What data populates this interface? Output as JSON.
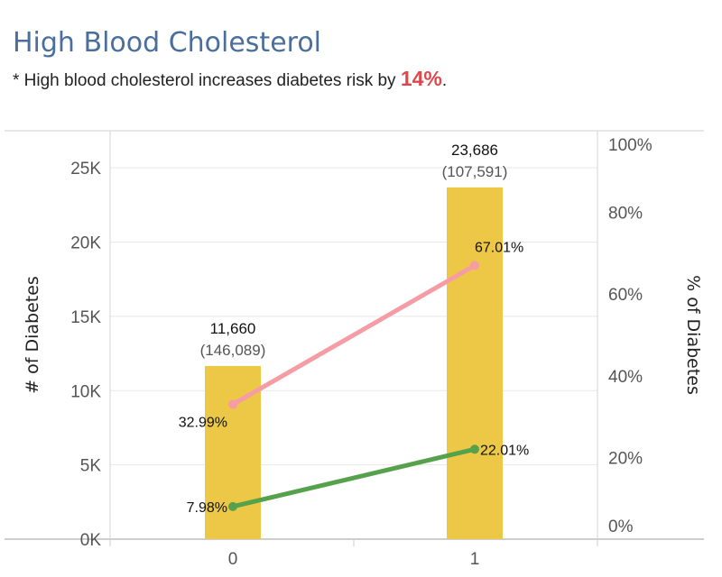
{
  "title": "High Blood Cholesterol",
  "subtitle": {
    "prefix": "* High blood cholesterol increases diabetes risk by ",
    "highlight": "14%",
    "suffix": "."
  },
  "colors": {
    "title": "#4a6f9c",
    "bar": "#ecc846",
    "pink_line": "#f59ca5",
    "green_line": "#56a14b",
    "highlight": "#e0474c",
    "grid": "#e8e8e8"
  },
  "chart_data": {
    "type": "bar+line",
    "categories": [
      "0",
      "1"
    ],
    "bars": {
      "axis": "left",
      "values": [
        11660,
        23686
      ],
      "labels": [
        "11,660",
        "23,686"
      ],
      "sublabels": [
        "(146,089)",
        "(107,591)"
      ]
    },
    "lines": [
      {
        "color": "pink",
        "axis": "right",
        "values": [
          32.99,
          67.01
        ],
        "labels": [
          "32.99%",
          "67.01%"
        ]
      },
      {
        "color": "green",
        "axis": "right",
        "values": [
          7.98,
          22.01
        ],
        "labels": [
          "7.98%",
          "22.01%"
        ]
      }
    ],
    "left_axis": {
      "label": "# of Diabetes",
      "ylim": [
        0,
        27500
      ],
      "ticks": [
        0,
        5000,
        10000,
        15000,
        20000,
        25000
      ],
      "tick_labels": [
        "0K",
        "5K",
        "10K",
        "15K",
        "20K",
        "25K"
      ]
    },
    "right_axis": {
      "label": "% of Diabetes",
      "ylim": [
        0,
        100
      ],
      "ticks": [
        0,
        20,
        40,
        60,
        80,
        100
      ],
      "tick_labels": [
        "0%",
        "20%",
        "40%",
        "60%",
        "80%",
        "100%"
      ]
    },
    "grid": true
  }
}
